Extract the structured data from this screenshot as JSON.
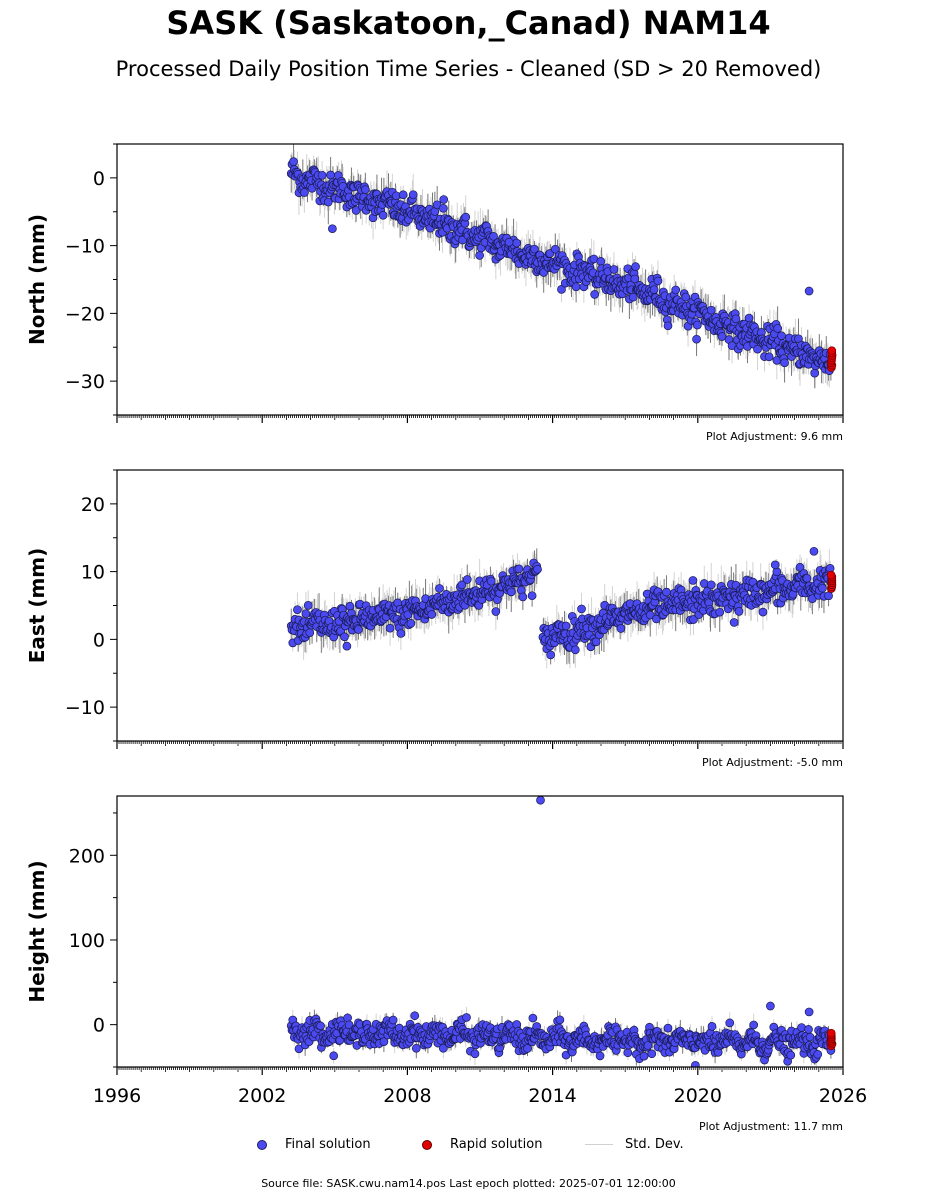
{
  "title": "SASK (Saskatoon,_Canad) NAM14",
  "subtitle": "Processed Daily Position Time Series - Cleaned (SD > 20 Removed)",
  "legend": {
    "final_label": "Final solution",
    "rapid_label": "Rapid solution",
    "std_label": "Std. Dev."
  },
  "colors": {
    "final": "#4a4af0",
    "rapid": "#e00000",
    "std": "#c8c8c8"
  },
  "footer": "Source file: SASK.cwu.nam14.pos  Last epoch plotted: 2025-07-01 12:00:00",
  "chart_data": [
    {
      "type": "scatter",
      "ylabel": "North (mm)",
      "adjustment": "Plot Adjustment: 9.6 mm",
      "xlim": [
        1996,
        2026
      ],
      "ylim": [
        -35,
        5
      ],
      "yticks": [
        0,
        -10,
        -20,
        -30
      ],
      "ytick_labels": [
        "0",
        "−10",
        "−20",
        "−30"
      ],
      "data_start": 2003.2,
      "data_end": 2025.5,
      "trend": [
        [
          2003.2,
          0.5
        ],
        [
          2008,
          -5
        ],
        [
          2013,
          -11.5
        ],
        [
          2018,
          -17
        ],
        [
          2022,
          -23
        ],
        [
          2025.5,
          -27.5
        ]
      ],
      "outliers": [
        [
          2009.5,
          -3.2
        ],
        [
          2024.6,
          -16.7
        ],
        [
          2012.2,
          -9.5
        ],
        [
          2004.9,
          -7.5
        ]
      ],
      "rapid": {
        "x_range": [
          2025.5,
          2025.55
        ],
        "y_range": [
          -28,
          -25.5
        ]
      }
    },
    {
      "type": "scatter",
      "ylabel": "East (mm)",
      "adjustment": "Plot Adjustment: -5.0 mm",
      "xlim": [
        1996,
        2026
      ],
      "ylim": [
        -15,
        25
      ],
      "yticks": [
        20,
        10,
        0,
        -10
      ],
      "ytick_labels": [
        "20",
        "10",
        "0",
        "−10"
      ],
      "data_start": 2003.2,
      "data_end": 2025.5,
      "segments": [
        [
          [
            2003.2,
            1.5
          ],
          [
            2008,
            3.8
          ],
          [
            2013.4,
            9.5
          ]
        ],
        [
          [
            2013.6,
            0
          ],
          [
            2018,
            4.5
          ],
          [
            2021,
            6
          ],
          [
            2025.5,
            8.5
          ]
        ]
      ],
      "outliers": [
        [
          2005.5,
          -1
        ],
        [
          2019.8,
          8.7
        ],
        [
          2021.5,
          2.5
        ],
        [
          2024.8,
          13
        ],
        [
          2023.2,
          11
        ]
      ],
      "rapid": {
        "x_range": [
          2025.5,
          2025.55
        ],
        "y_range": [
          7.5,
          9.5
        ]
      }
    },
    {
      "type": "scatter",
      "ylabel": "Height (mm)",
      "adjustment": "Plot Adjustment: 11.7 mm",
      "xlim": [
        1996,
        2026
      ],
      "ylim": [
        -50,
        270
      ],
      "yticks": [
        200,
        100,
        0
      ],
      "ytick_labels": [
        "200",
        "100",
        "0"
      ],
      "xticks": [
        1996,
        2002,
        2008,
        2014,
        2020,
        2026
      ],
      "data_start": 2003.2,
      "data_end": 2025.5,
      "trend": [
        [
          2003.2,
          -8
        ],
        [
          2010,
          -12
        ],
        [
          2015,
          -18
        ],
        [
          2020,
          -20
        ],
        [
          2025.5,
          -22
        ]
      ],
      "outliers": [
        [
          2013.5,
          265
        ],
        [
          2023.0,
          22
        ],
        [
          2019.9,
          -48
        ],
        [
          2024.6,
          15
        ]
      ],
      "rapid": {
        "x_range": [
          2025.5,
          2025.55
        ],
        "y_range": [
          -25,
          -10
        ]
      }
    }
  ]
}
